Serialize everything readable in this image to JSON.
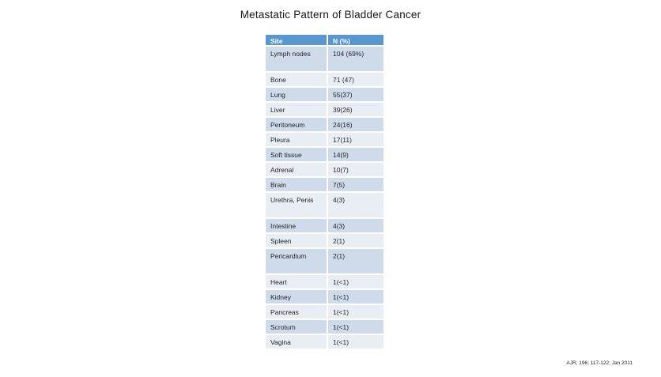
{
  "title": "Metastatic Pattern of Bladder Cancer",
  "footer": {
    "citation": "AJR; 196; 117-122; Jan 2011"
  },
  "colors": {
    "header_bg": "#5997d0",
    "band_dark": "#cfdbea",
    "band_light": "#e9eef5",
    "header_text": "#ffffff",
    "body_text": "#262626",
    "background": "#ffffff"
  },
  "chart_data": {
    "type": "table",
    "title": "Metastatic Pattern of Bladder Cancer",
    "columns": [
      "Site",
      "N (%)"
    ],
    "rows": [
      {
        "site": "Lymph nodes",
        "n": "104 (69%)",
        "tall": true
      },
      {
        "site": "Bone",
        "n": "71 (47)",
        "tall": false
      },
      {
        "site": "Lung",
        "n": "55(37)",
        "tall": false
      },
      {
        "site": "Liver",
        "n": "39(26)",
        "tall": false
      },
      {
        "site": "Peritoneum",
        "n": "24(16)",
        "tall": false
      },
      {
        "site": "Pleura",
        "n": "17(11)",
        "tall": false
      },
      {
        "site": "Soft tissue",
        "n": "14(9)",
        "tall": false
      },
      {
        "site": "Adrenal",
        "n": "10(7)",
        "tall": false
      },
      {
        "site": "Brain",
        "n": "7(5)",
        "tall": false
      },
      {
        "site": "Urethra, Penis",
        "n": "4(3)",
        "tall": true
      },
      {
        "site": "Intestine",
        "n": "4(3)",
        "tall": false
      },
      {
        "site": "Spleen",
        "n": "2(1)",
        "tall": false
      },
      {
        "site": "Pericardium",
        "n": "2(1)",
        "tall": true
      },
      {
        "site": "Heart",
        "n": "1(<1)",
        "tall": false
      },
      {
        "site": "Kidney",
        "n": "1(<1)",
        "tall": false
      },
      {
        "site": "Pancreas",
        "n": "1(<1)",
        "tall": false
      },
      {
        "site": "Scrotum",
        "n": "1(<1)",
        "tall": false
      },
      {
        "site": "Vagina",
        "n": "1(<1)",
        "tall": false
      }
    ]
  }
}
